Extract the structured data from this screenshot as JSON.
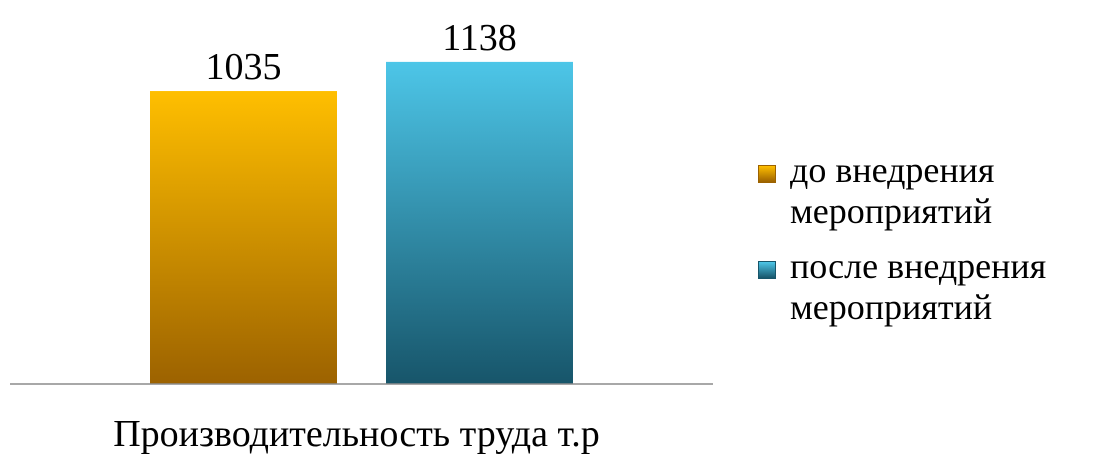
{
  "chart_data": {
    "type": "bar",
    "categories": [
      "Производительность труда т.р"
    ],
    "series": [
      {
        "name": "до внедрения мероприятий",
        "name_lines": [
          "до внедрения",
          "мероприятий"
        ],
        "values": [
          1035
        ],
        "color_top": "#FFBF00",
        "color_bottom": "#9C6200"
      },
      {
        "name": "после внедрения мероприятий",
        "name_lines": [
          "после внедрения",
          "мероприятий"
        ],
        "values": [
          1138
        ],
        "color_top": "#4DC6E8",
        "color_bottom": "#17556A"
      }
    ],
    "ylim": [
      0,
      1180
    ],
    "grid": false,
    "legend": "right",
    "data_labels": true
  }
}
